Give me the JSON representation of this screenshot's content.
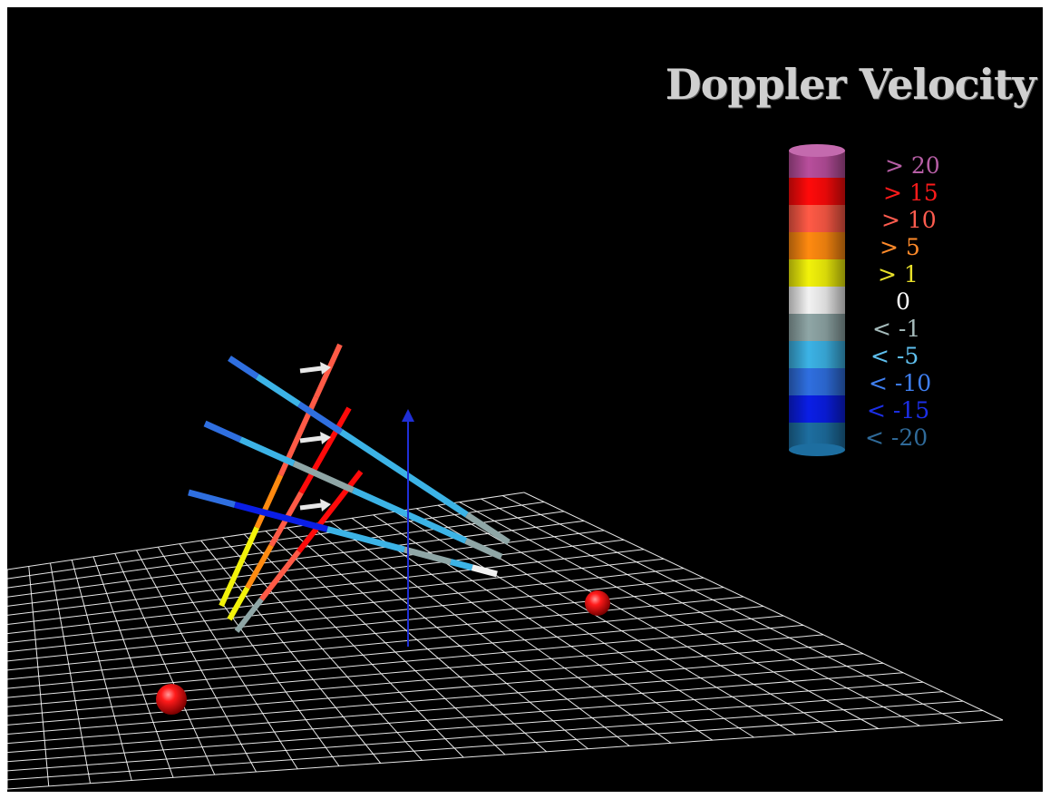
{
  "title": "Doppler Velocity",
  "legend": [
    {
      "label": "> 20",
      "color": "#b84e9c",
      "text_color": "#b65ea5"
    },
    {
      "label": "> 15",
      "color": "#ff0a0a",
      "text_color": "#ff1b1b"
    },
    {
      "label": "> 10",
      "color": "#ff5a46",
      "text_color": "#ff5c4f"
    },
    {
      "label": "> 5",
      "color": "#ff8a10",
      "text_color": "#ff8a2a"
    },
    {
      "label": "> 1",
      "color": "#f2f20a",
      "text_color": "#e8e02a"
    },
    {
      "label": "0",
      "color": "#f2f2f2",
      "text_color": "#ffffff"
    },
    {
      "label": "< -1",
      "color": "#8fa6a6",
      "text_color": "#a6bcbc"
    },
    {
      "label": "< -5",
      "color": "#3cb3e6",
      "text_color": "#5fc0ef"
    },
    {
      "label": "< -10",
      "color": "#2f6fe0",
      "text_color": "#3f7ff0"
    },
    {
      "label": "< -15",
      "color": "#0a1ee6",
      "text_color": "#1c2fe8"
    },
    {
      "label": "< -20",
      "color": "#1d6ea0",
      "text_color": "#2f6a99"
    }
  ],
  "colors": {
    "background": "#000000",
    "grid": "#ffffff",
    "axis": "#1f2fd6",
    "marker": "#ff1010",
    "arrow": "#e8e8e8"
  }
}
